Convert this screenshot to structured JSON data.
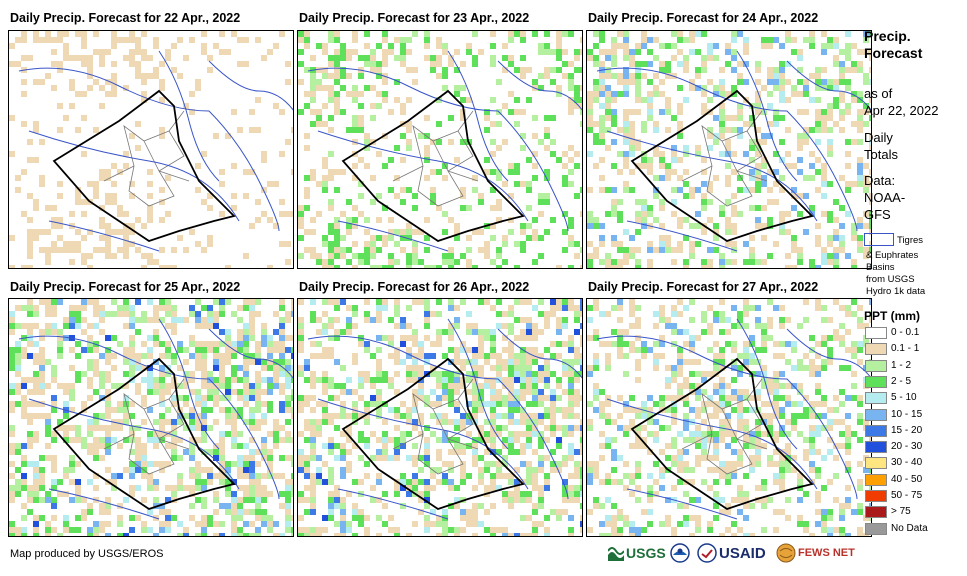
{
  "panels": [
    {
      "title": "Daily Precip. Forecast for 22 Apr., 2022",
      "intensity": 0
    },
    {
      "title": "Daily Precip. Forecast for 23 Apr., 2022",
      "intensity": 1
    },
    {
      "title": "Daily Precip. Forecast for 24 Apr., 2022",
      "intensity": 2
    },
    {
      "title": "Daily Precip. Forecast for 25 Apr., 2022",
      "intensity": 3
    },
    {
      "title": "Daily Precip. Forecast for 26 Apr., 2022",
      "intensity": 3
    },
    {
      "title": "Daily Precip. Forecast for 27 Apr., 2022",
      "intensity": 2
    }
  ],
  "legend": {
    "title_line1": "Precip.",
    "title_line2": "Forecast",
    "asof_line1": "as of",
    "asof_line2": "Apr 22, 2022",
    "daily_line1": "Daily",
    "daily_line2": "Totals",
    "data_line1": "Data:",
    "data_line2": "NOAA-",
    "data_line3": "GFS",
    "basin_label": "Tigres",
    "basin_note1": "& Euphrates",
    "basin_note2": "Basins",
    "basin_note3": "from USGS",
    "basin_note4": "Hydro 1k data",
    "ppt_title": "PPT (mm)",
    "classes": [
      {
        "label": "0 - 0.1",
        "color": "#ffffff"
      },
      {
        "label": "0.1 - 1",
        "color": "#efd9b4"
      },
      {
        "label": "1 - 2",
        "color": "#b4f0a0"
      },
      {
        "label": "2 - 5",
        "color": "#5fe05a"
      },
      {
        "label": "5 - 10",
        "color": "#b4ecf0"
      },
      {
        "label": "10 - 15",
        "color": "#78b4f0"
      },
      {
        "label": "15 - 20",
        "color": "#3c78e6"
      },
      {
        "label": "20 - 30",
        "color": "#2050dc"
      },
      {
        "label": "30 - 40",
        "color": "#ffe680"
      },
      {
        "label": "40 - 50",
        "color": "#ffa000"
      },
      {
        "label": "50 - 75",
        "color": "#f03c00"
      },
      {
        "label": "> 75",
        "color": "#aa1a1a"
      },
      {
        "label": "No Data",
        "color": "#999999"
      }
    ]
  },
  "credit": "Map produced by USGS/EROS",
  "logos": {
    "usgs": "USGS",
    "usaid": "USAID",
    "fews": "FEWS NET"
  }
}
